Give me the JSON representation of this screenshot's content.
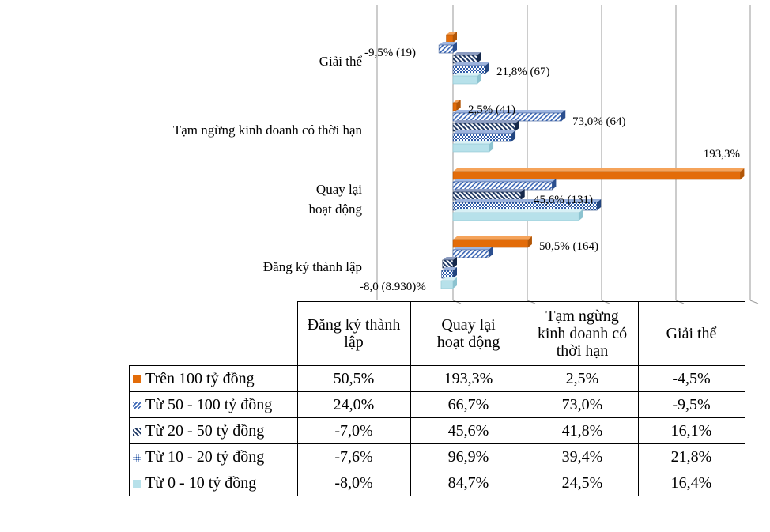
{
  "colors": {
    "series_0": "#E36C09",
    "series_1": "#3A66B5",
    "series_2": "#1F3864",
    "series_3": "#2E5BA8",
    "series_4": "#B7E1EA"
  },
  "chart_data": {
    "type": "bar",
    "orientation": "horizontal",
    "style": "3d-clustered-bar-with-data-table",
    "categories": [
      "Đăng ký thành lập",
      "Quay lại hoạt động",
      "Tạm ngừng kinh doanh có thời hạn",
      "Giải thể"
    ],
    "category_axis_labels": [
      "Đăng ký thành lập",
      "Quay lại\nhoạt động",
      "Tạm ngừng kinh doanh có thời hạn",
      "Giải thể"
    ],
    "table_headers": [
      "Đăng ký thành\nlập",
      "Quay lại\nhoạt động",
      "Tạm ngừng\nkinh doanh có\nthời hạn",
      "Giải thể"
    ],
    "value_unit": "%",
    "series": [
      {
        "name": "Trên 100 tỷ đồng",
        "values": [
          50.5,
          193.3,
          2.5,
          -4.5
        ],
        "display": [
          "50,5%",
          "193,3%",
          "2,5%",
          "-4,5%"
        ]
      },
      {
        "name": "Từ 50 - 100 tỷ đồng",
        "values": [
          24.0,
          66.7,
          73.0,
          -9.5
        ],
        "display": [
          "24,0%",
          "66,7%",
          "73,0%",
          "-9,5%"
        ]
      },
      {
        "name": "Từ 20 - 50 tỷ đồng",
        "values": [
          -7.0,
          45.6,
          41.8,
          16.1
        ],
        "display": [
          "-7,0%",
          "45,6%",
          "41,8%",
          "16,1%"
        ]
      },
      {
        "name": "Từ 10 - 20 tỷ đồng",
        "values": [
          -7.6,
          96.9,
          39.4,
          21.8
        ],
        "display": [
          "-7,6%",
          "96,9%",
          "39,4%",
          "21,8%"
        ]
      },
      {
        "name": "Từ 0 - 10 tỷ đồng",
        "values": [
          -8.0,
          84.7,
          24.5,
          16.4
        ],
        "display": [
          "-8,0%",
          "84,7%",
          "24,5%",
          "16,4%"
        ]
      }
    ],
    "annotations": [
      {
        "text": "50,5% (164)",
        "category": "Đăng ký thành lập",
        "series": "Trên 100 tỷ đồng"
      },
      {
        "text": "-8,0 (8.930)%",
        "category": "Đăng ký thành lập",
        "series": "Từ 0 - 10 tỷ đồng"
      },
      {
        "text": "193,3%",
        "category": "Quay lại hoạt động",
        "series": "Trên 100 tỷ đồng"
      },
      {
        "text": "45,6% (131)",
        "category": "Quay lại hoạt động",
        "series": "Từ 20 - 50 tỷ đồng"
      },
      {
        "text": "2,5% (41)",
        "category": "Tạm ngừng kinh doanh có thời hạn",
        "series": "Trên 100 tỷ đồng"
      },
      {
        "text": "73,0% (64)",
        "category": "Tạm ngừng kinh doanh có thời hạn",
        "series": "Từ 50 - 100 tỷ đồng"
      },
      {
        "text": "-9,5% (19)",
        "category": "Giải thể",
        "series": "Từ 50 - 100 tỷ đồng"
      },
      {
        "text": "21,8% (67)",
        "category": "Giải thể",
        "series": "Từ 10 - 20 tỷ đồng"
      }
    ],
    "xlim": [
      -10,
      200
    ],
    "gridlines": "vertical",
    "legend": "data-table-keys"
  }
}
